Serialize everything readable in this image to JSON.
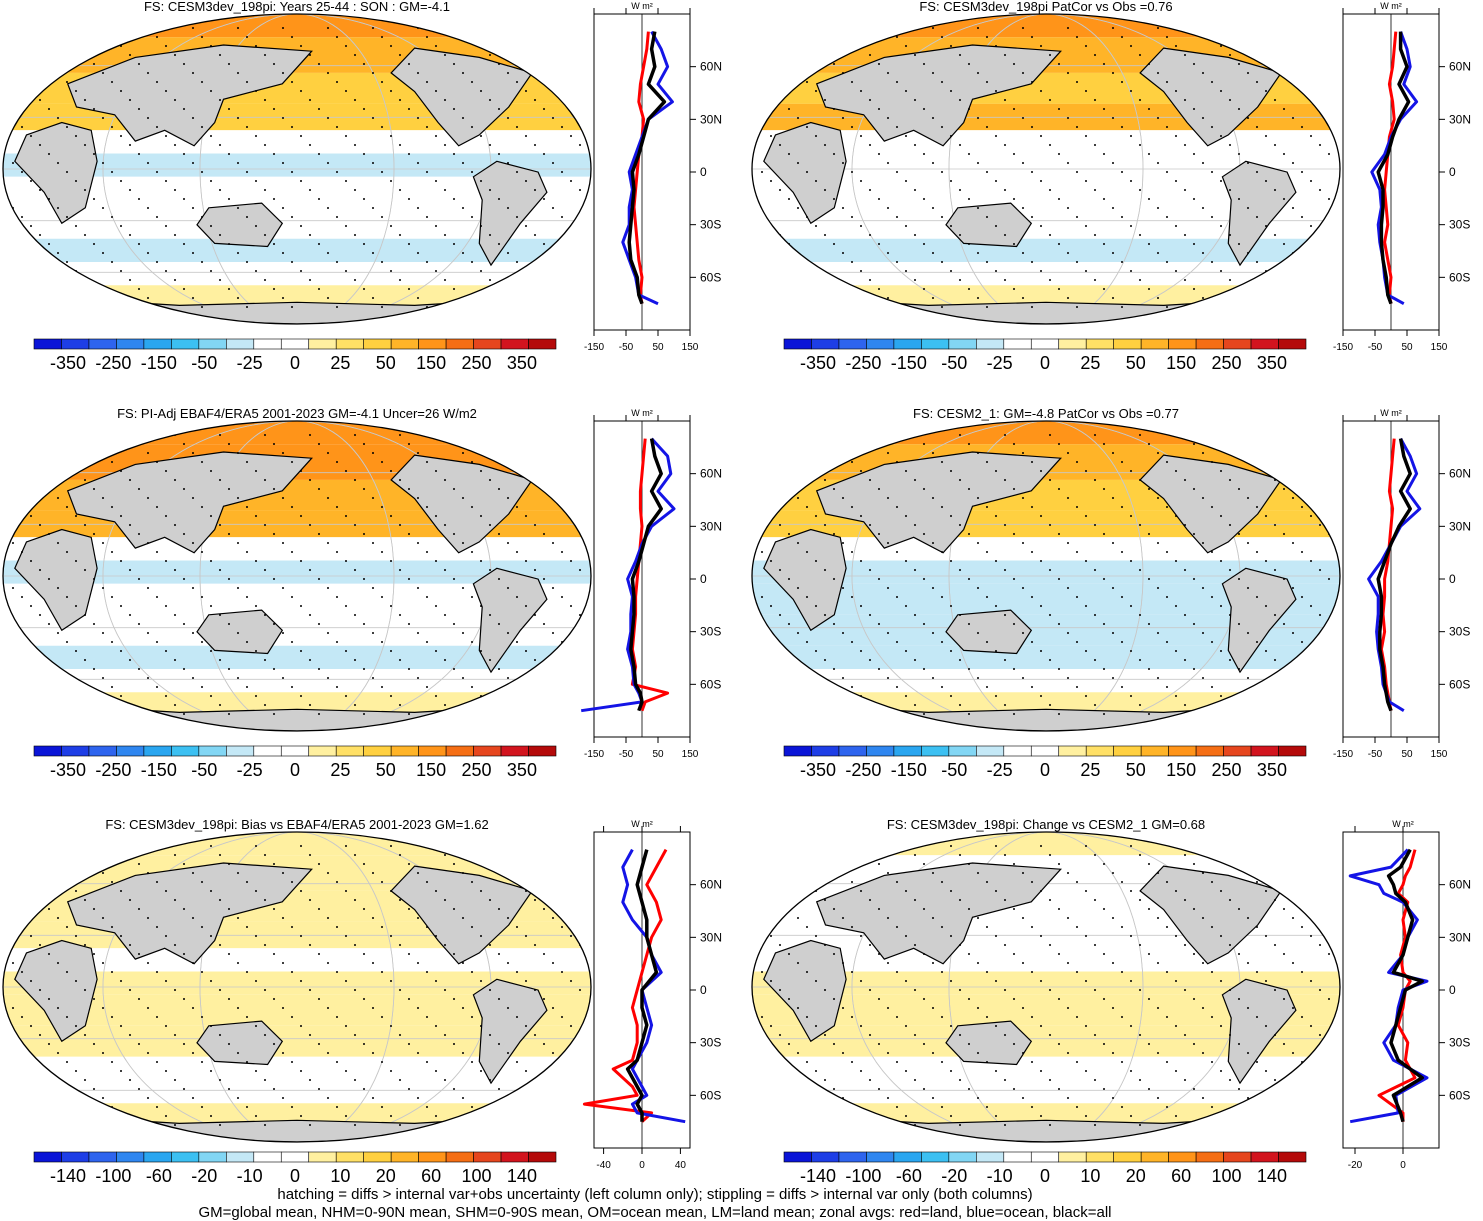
{
  "colors": {
    "land": "#cfcfcf",
    "coast": "#000000",
    "grid": "#c8c8c8",
    "series_land": "#ff0000",
    "series_ocean": "#1414e6",
    "series_all": "#000000",
    "palette": [
      "#0a14d7",
      "#1e3ee6",
      "#2e64ee",
      "#2f86f0",
      "#2aa6f0",
      "#3cc0f2",
      "#82d6f4",
      "#c4e8f6",
      "#ffffff",
      "#ffffff",
      "#fff0a0",
      "#ffe066",
      "#ffd040",
      "#ffb428",
      "#ff9419",
      "#f56e14",
      "#e6461e",
      "#d2141e",
      "#b40a0a"
    ]
  },
  "chart_data": [
    {
      "type": "heatmap",
      "title": "FS: CESM3dev_198pi: Years 25-44 : SON : GM=-4.1",
      "colorbar_labels": [
        "-350",
        "-250",
        "-150",
        "-50",
        "-25",
        "0",
        "25",
        "50",
        "150",
        "250",
        "350"
      ],
      "field": {
        "trop": -70,
        "subtrop_n": 110,
        "subtrop_s": -20,
        "midlat_n": 150,
        "midlat_s": -90,
        "polar_s": 50,
        "arctic": 200
      },
      "zonal": {
        "x_ticks": [
          "-150",
          "-50",
          "50",
          "150"
        ],
        "x_lim": [
          -150,
          150
        ],
        "unit": "W m²",
        "y_ticks": [
          "60N",
          "30N",
          "0",
          "30S",
          "60S"
        ],
        "lat": [
          80,
          70,
          60,
          50,
          40,
          30,
          20,
          10,
          0,
          -10,
          -20,
          -30,
          -40,
          -50,
          -60,
          -70,
          -75
        ],
        "land": [
          20,
          15,
          5,
          -5,
          -10,
          5,
          0,
          -10,
          -15,
          -20,
          -25,
          -20,
          -15,
          -10,
          0,
          -5,
          0
        ],
        "ocean": [
          30,
          60,
          80,
          50,
          95,
          20,
          0,
          -20,
          -40,
          -30,
          -40,
          -40,
          -60,
          -40,
          -20,
          -10,
          50
        ],
        "all": [
          40,
          30,
          40,
          20,
          70,
          20,
          5,
          -10,
          -30,
          -25,
          -30,
          -35,
          -40,
          -35,
          -15,
          -10,
          0
        ]
      }
    },
    {
      "type": "heatmap",
      "title": "FS: CESM3dev_198pi PatCor vs Obs =0.76",
      "colorbar_labels": [
        "-350",
        "-250",
        "-150",
        "-50",
        "-25",
        "0",
        "25",
        "50",
        "150",
        "250",
        "350"
      ],
      "field": {
        "trop": -50,
        "subtrop_n": 150,
        "subtrop_s": -30,
        "midlat_n": 170,
        "midlat_s": -70,
        "polar_s": 40,
        "arctic": 180
      },
      "zonal": {
        "x_ticks": [
          "-150",
          "-50",
          "50",
          "150"
        ],
        "x_lim": [
          -150,
          150
        ],
        "unit": "W m²",
        "y_ticks": [
          "60N",
          "30N",
          "0",
          "30S",
          "60S"
        ],
        "lat": [
          80,
          70,
          60,
          50,
          40,
          30,
          20,
          10,
          0,
          -10,
          -20,
          -30,
          -40,
          -50,
          -60,
          -70,
          -75
        ],
        "land": [
          15,
          10,
          5,
          -5,
          5,
          10,
          -5,
          -10,
          -15,
          -20,
          -15,
          -10,
          -20,
          -10,
          0,
          -5,
          0
        ],
        "ocean": [
          30,
          50,
          60,
          40,
          80,
          30,
          0,
          -20,
          -60,
          -35,
          -30,
          -40,
          -35,
          -25,
          -20,
          -10,
          40
        ],
        "all": [
          30,
          30,
          50,
          25,
          55,
          25,
          5,
          -10,
          -40,
          -25,
          -25,
          -30,
          -30,
          -25,
          -15,
          -10,
          0
        ]
      }
    },
    {
      "type": "heatmap",
      "title": "FS: PI-Adj EBAF4/ERA5 2001-2023 GM=-4.1 Uncer=26 W/m2",
      "colorbar_labels": [
        "-350",
        "-250",
        "-150",
        "-50",
        "-25",
        "0",
        "25",
        "50",
        "150",
        "250",
        "350"
      ],
      "field": {
        "trop": -60,
        "subtrop_n": 160,
        "subtrop_s": -20,
        "midlat_n": 180,
        "midlat_s": -80,
        "polar_s": 40,
        "arctic": 190
      },
      "zonal": {
        "x_ticks": [
          "-150",
          "-50",
          "50",
          "150"
        ],
        "x_lim": [
          -150,
          150
        ],
        "unit": "W m²",
        "y_ticks": [
          "60N",
          "30N",
          "0",
          "30S",
          "60S"
        ],
        "lat": [
          80,
          70,
          60,
          50,
          40,
          30,
          20,
          10,
          0,
          -10,
          -20,
          -30,
          -40,
          -50,
          -60,
          -65,
          -70,
          -75
        ],
        "land": [
          10,
          5,
          0,
          -5,
          -5,
          0,
          -5,
          -10,
          -15,
          -20,
          -20,
          -25,
          -30,
          -20,
          -30,
          80,
          10,
          0
        ],
        "ocean": [
          30,
          80,
          90,
          50,
          100,
          30,
          0,
          -20,
          -45,
          -30,
          -35,
          -35,
          -45,
          -30,
          -25,
          -10,
          0,
          -190
        ],
        "all": [
          30,
          40,
          60,
          30,
          60,
          20,
          5,
          -10,
          -30,
          -25,
          -25,
          -30,
          -35,
          -25,
          -20,
          -5,
          0,
          -10
        ]
      }
    },
    {
      "type": "heatmap",
      "title": "FS: CESM2_1: GM=-4.8 PatCor vs Obs =0.77",
      "colorbar_labels": [
        "-350",
        "-250",
        "-150",
        "-50",
        "-25",
        "0",
        "25",
        "50",
        "150",
        "250",
        "350"
      ],
      "field": {
        "trop": -80,
        "subtrop_n": 130,
        "subtrop_s": -60,
        "midlat_n": 160,
        "midlat_s": -70,
        "polar_s": 40,
        "arctic": 180
      },
      "zonal": {
        "x_ticks": [
          "-150",
          "-50",
          "50",
          "150"
        ],
        "x_lim": [
          -150,
          150
        ],
        "unit": "W m²",
        "y_ticks": [
          "60N",
          "30N",
          "0",
          "30S",
          "60S"
        ],
        "lat": [
          80,
          70,
          60,
          50,
          40,
          30,
          20,
          10,
          0,
          -10,
          -20,
          -30,
          -40,
          -50,
          -60,
          -70,
          -75
        ],
        "land": [
          10,
          5,
          0,
          -5,
          5,
          0,
          -5,
          -10,
          -20,
          -20,
          -25,
          -20,
          -30,
          -20,
          -15,
          -5,
          0
        ],
        "ocean": [
          30,
          60,
          80,
          50,
          90,
          30,
          0,
          -30,
          -70,
          -40,
          -40,
          -45,
          -40,
          -30,
          -25,
          -5,
          40
        ],
        "all": [
          30,
          40,
          60,
          30,
          60,
          25,
          0,
          -20,
          -40,
          -30,
          -30,
          -35,
          -35,
          -25,
          -20,
          -10,
          0
        ]
      }
    },
    {
      "type": "heatmap",
      "title": "FS: CESM3dev_198pi: Bias vs EBAF4/ERA5 2001-2023  GM=1.62",
      "colorbar_labels": [
        "-140",
        "-100",
        "-60",
        "-20",
        "-10",
        "0",
        "10",
        "20",
        "60",
        "100",
        "140"
      ],
      "field": {
        "trop": 15,
        "subtrop_n": 20,
        "subtrop_s": 10,
        "midlat_n": 20,
        "midlat_s": -15,
        "polar_s": 10,
        "arctic": 15
      },
      "zonal": {
        "x_ticks": [
          "-40",
          "0",
          "40"
        ],
        "x_lim": [
          -50,
          50
        ],
        "unit": "W m²",
        "y_ticks": [
          "60N",
          "30N",
          "0",
          "30S",
          "60S"
        ],
        "lat": [
          80,
          70,
          60,
          50,
          40,
          30,
          20,
          10,
          0,
          -10,
          -20,
          -30,
          -40,
          -45,
          -50,
          -55,
          -60,
          -65,
          -70,
          -75
        ],
        "land": [
          25,
          15,
          5,
          15,
          20,
          10,
          5,
          0,
          -5,
          -10,
          -5,
          -5,
          -10,
          -30,
          -20,
          -10,
          -5,
          -60,
          10,
          0
        ],
        "ocean": [
          -10,
          -20,
          -15,
          -20,
          -10,
          5,
          10,
          20,
          0,
          5,
          10,
          5,
          -5,
          -10,
          -5,
          0,
          5,
          -10,
          -5,
          45
        ],
        "all": [
          5,
          0,
          -5,
          0,
          5,
          5,
          10,
          15,
          0,
          0,
          5,
          0,
          -5,
          -15,
          -10,
          -5,
          0,
          -5,
          0,
          0
        ]
      }
    },
    {
      "type": "heatmap",
      "title": "FS: CESM3dev_198pi: Change vs CESM2_1 GM=0.68",
      "colorbar_labels": [
        "-140",
        "-100",
        "-60",
        "-20",
        "-10",
        "0",
        "10",
        "20",
        "60",
        "100",
        "140"
      ],
      "field": {
        "trop": 10,
        "subtrop_n": -15,
        "subtrop_s": 15,
        "midlat_n": -10,
        "midlat_s": -20,
        "polar_s": 10,
        "arctic": 15
      },
      "zonal": {
        "x_ticks": [
          "-20",
          "0"
        ],
        "x_lim": [
          -25,
          15
        ],
        "unit": "W m²",
        "y_ticks": [
          "60N",
          "30N",
          "0",
          "30S",
          "60S"
        ],
        "lat": [
          80,
          70,
          65,
          60,
          55,
          50,
          40,
          30,
          20,
          10,
          5,
          0,
          -10,
          -20,
          -30,
          -40,
          -50,
          -60,
          -70,
          -75
        ],
        "land": [
          5,
          3,
          1,
          0,
          -2,
          2,
          0,
          1,
          -1,
          0,
          3,
          1,
          0,
          -2,
          2,
          1,
          5,
          -10,
          0,
          0
        ],
        "ocean": [
          2,
          -5,
          -22,
          -10,
          -8,
          0,
          6,
          2,
          0,
          -6,
          10,
          0,
          -2,
          -3,
          -8,
          -4,
          10,
          -3,
          -2,
          -22
        ],
        "all": [
          3,
          -1,
          -6,
          -4,
          -3,
          1,
          4,
          2,
          0,
          -4,
          8,
          1,
          -1,
          -3,
          -5,
          -2,
          8,
          -4,
          -1,
          0
        ]
      }
    }
  ],
  "footnote": {
    "line1": "hatching = diffs > internal var+obs uncertainty (left column only); stippling = diffs > internal var only (both columns)",
    "line2": "GM=global mean, NHM=0-90N mean, SHM=0-90S mean, OM=ocean mean, LM=land mean; zonal avgs: red=land, blue=ocean, black=all"
  }
}
